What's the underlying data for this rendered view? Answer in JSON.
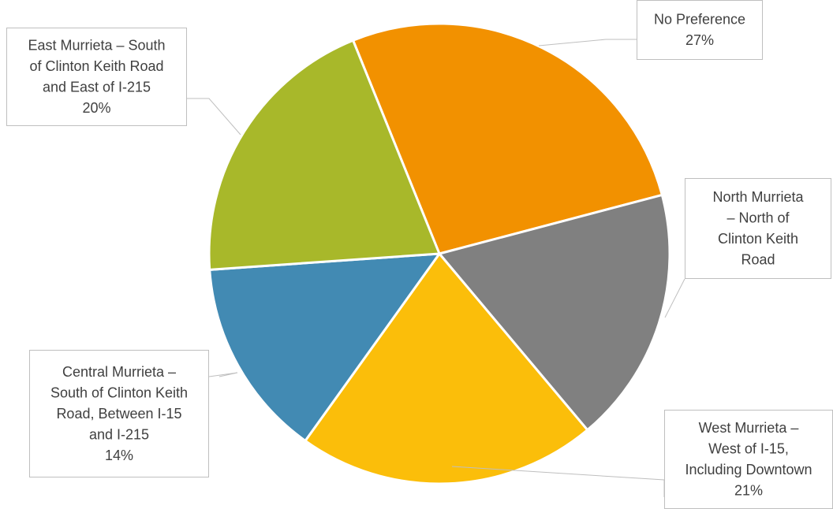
{
  "chart_data": {
    "type": "pie",
    "title": "",
    "slices": [
      {
        "label_lines": [
          "No Preference"
        ],
        "value": 27,
        "value_label": "27%",
        "color": "#F29100"
      },
      {
        "label_lines": [
          "North Murrieta",
          "– North of",
          "Clinton Keith",
          "Road"
        ],
        "value": 18,
        "value_label": "",
        "color": "#808080"
      },
      {
        "label_lines": [
          "West Murrieta –",
          "West of I-15,",
          "Including Downtown"
        ],
        "value": 21,
        "value_label": "21%",
        "color": "#FBBE0A"
      },
      {
        "label_lines": [
          "Central Murrieta –",
          "South of Clinton Keith",
          "Road,  Between I-15",
          "and I-215"
        ],
        "value": 14,
        "value_label": "14%",
        "color": "#428AB3"
      },
      {
        "label_lines": [
          "East Murrieta – South",
          "of Clinton Keith Road",
          "and East of I-215"
        ],
        "value": 20,
        "value_label": "20%",
        "color": "#A8B82A"
      }
    ]
  }
}
